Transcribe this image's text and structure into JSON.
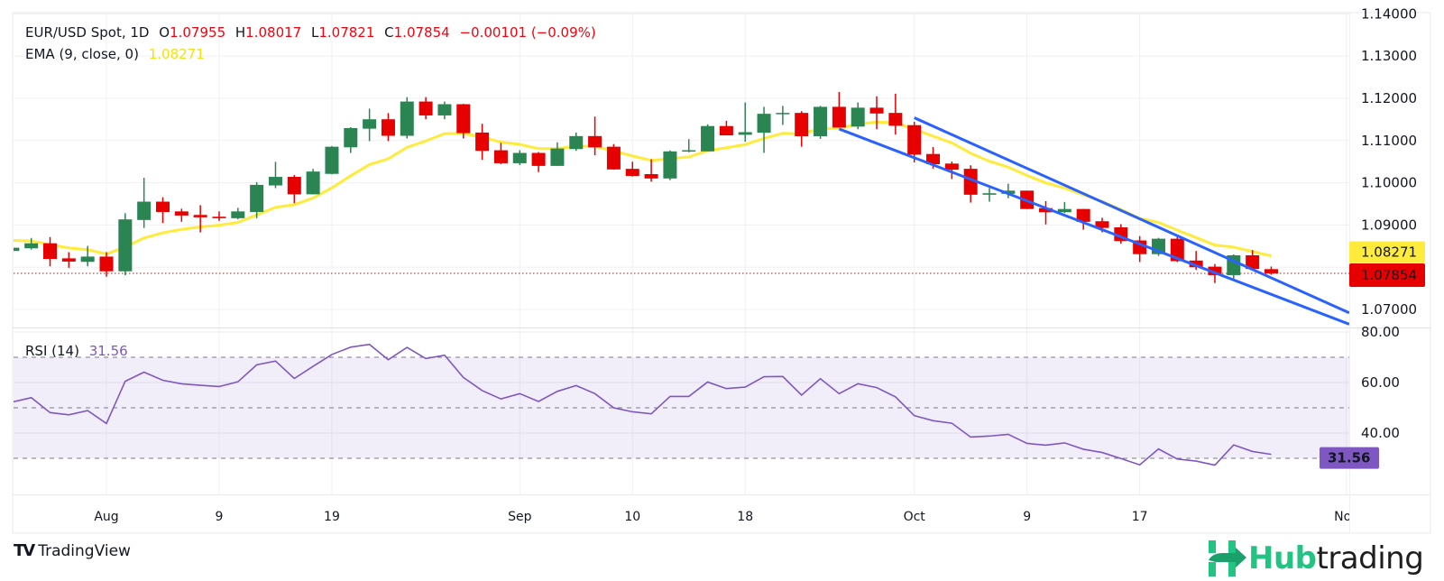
{
  "header": {
    "symbol": "EUR/USD Spot, 1D",
    "o_label": "O",
    "open": "1.07955",
    "h_label": "H",
    "high": "1.08017",
    "l_label": "L",
    "low": "1.07821",
    "c_label": "C",
    "close": "1.07854",
    "change": "−0.00101 (−0.09%)"
  },
  "ema": {
    "label": "EMA (9, close, 0)",
    "value": "1.08271"
  },
  "rsi": {
    "label": "RSI (14)",
    "value": "31.56"
  },
  "price_badges": {
    "ema": "1.08271",
    "last": "1.07854",
    "rsi": "31.56"
  },
  "colors": {
    "up": "#2b8553",
    "down": "#e60000",
    "ema": "#ffeb3b",
    "channel": "#2962ff",
    "rsi": "#7e57c2",
    "badge_ema": "#ffeb3b",
    "badge_last": "#e60000",
    "badge_rsi": "#7e57c2"
  },
  "footer": {
    "tradingview": "TradingView",
    "hub_a": "Hub",
    "hub_b": "trading"
  },
  "chart_data": {
    "type": "candlestick",
    "title": "EUR/USD Spot, 1D",
    "first_index": -5,
    "candles_ohlc": [
      [
        1.08385,
        1.08462,
        1.08385,
        1.08462
      ],
      [
        1.08448,
        1.08693,
        1.0842,
        1.08567
      ],
      [
        1.08567,
        1.08714,
        1.08022,
        1.08196
      ],
      [
        1.0821,
        1.08357,
        1.07987,
        1.08134
      ],
      [
        1.08127,
        1.08504,
        1.08022,
        1.08252
      ],
      [
        1.08252,
        1.08357,
        1.07777,
        1.07903
      ],
      [
        1.07903,
        1.0928,
        1.07812,
        1.09133
      ],
      [
        1.09119,
        1.10119,
        1.0893,
        1.09553
      ],
      [
        1.09553,
        1.09657,
        1.09049,
        1.09308
      ],
      [
        1.09322,
        1.09385,
        1.09077,
        1.09224
      ],
      [
        1.09238,
        1.09469,
        1.08826,
        1.09182
      ],
      [
        1.09196,
        1.09322,
        1.09098,
        1.09161
      ],
      [
        1.09161,
        1.09406,
        1.09133,
        1.09322
      ],
      [
        1.09308,
        1.10014,
        1.09161,
        1.09951
      ],
      [
        1.09937,
        1.10496,
        1.09874,
        1.1014
      ],
      [
        1.1014,
        1.10182,
        1.09518,
        1.09727
      ],
      [
        1.09727,
        1.10328,
        1.09727,
        1.10266
      ],
      [
        1.10211,
        1.1087,
        1.102,
        1.10854
      ],
      [
        1.1084,
        1.11316,
        1.10707,
        1.11295
      ],
      [
        1.11281,
        1.11756,
        1.10987,
        1.11504
      ],
      [
        1.11504,
        1.11651,
        1.10987,
        1.11113
      ],
      [
        1.11113,
        1.12029,
        1.1105,
        1.11924
      ],
      [
        1.11924,
        1.12029,
        1.11504,
        1.11595
      ],
      [
        1.11595,
        1.11924,
        1.11504,
        1.11861
      ],
      [
        1.11861,
        1.1187,
        1.1105,
        1.11176
      ],
      [
        1.1119,
        1.11399,
        1.10547,
        1.10756
      ],
      [
        1.1077,
        1.10945,
        1.10442,
        1.10463
      ],
      [
        1.10463,
        1.1077,
        1.10421,
        1.10707
      ],
      [
        1.10707,
        1.10728,
        1.10253,
        1.104
      ],
      [
        1.104,
        1.10959,
        1.104,
        1.10812
      ],
      [
        1.10798,
        1.1119,
        1.10756,
        1.11106
      ],
      [
        1.11106,
        1.11567,
        1.10651,
        1.1084
      ],
      [
        1.10854,
        1.10917,
        1.1031,
        1.10316
      ],
      [
        1.1033,
        1.10498,
        1.10148,
        1.10162
      ],
      [
        1.10205,
        1.10557,
        1.10026,
        1.10102
      ],
      [
        1.10102,
        1.10765,
        1.10061,
        1.10744
      ],
      [
        1.10744,
        1.11034,
        1.10723,
        1.10771
      ],
      [
        1.10744,
        1.11385,
        1.10744,
        1.11344
      ],
      [
        1.11344,
        1.11468,
        1.11123,
        1.11123
      ],
      [
        1.11137,
        1.11903,
        1.10971,
        1.11199
      ],
      [
        1.11185,
        1.11799,
        1.10709,
        1.11634
      ],
      [
        1.11634,
        1.1182,
        1.11372,
        1.11655
      ],
      [
        1.11655,
        1.11696,
        1.10854,
        1.11103
      ],
      [
        1.11103,
        1.1182,
        1.1104,
        1.11799
      ],
      [
        1.11799,
        1.12151,
        1.11309,
        1.11309
      ],
      [
        1.1133,
        1.11903,
        1.11268,
        1.11779
      ],
      [
        1.11779,
        1.12048,
        1.11268,
        1.11641
      ],
      [
        1.11655,
        1.1211,
        1.11144,
        1.11351
      ],
      [
        1.11365,
        1.11447,
        1.10482,
        1.10667
      ],
      [
        1.10682,
        1.10847,
        1.10337,
        1.1044
      ],
      [
        1.10455,
        1.10502,
        1.10088,
        1.1031
      ],
      [
        1.10331,
        1.10414,
        1.09531,
        1.09717
      ],
      [
        1.09717,
        1.09876,
        1.09552,
        1.09752
      ],
      [
        1.09738,
        1.09979,
        1.09634,
        1.09814
      ],
      [
        1.09814,
        1.09814,
        1.09379,
        1.09379
      ],
      [
        1.094,
        1.09565,
        1.09013,
        1.09303
      ],
      [
        1.09303,
        1.09545,
        1.09282,
        1.09379
      ],
      [
        1.09379,
        1.09379,
        1.08889,
        1.09075
      ],
      [
        1.09089,
        1.09172,
        1.08827,
        1.08931
      ],
      [
        1.08944,
        1.0902,
        1.08558,
        1.0862
      ],
      [
        1.08634,
        1.08737,
        1.08123,
        1.0831
      ],
      [
        1.0831,
        1.08696,
        1.08268,
        1.08675
      ],
      [
        1.08675,
        1.08717,
        1.08123,
        1.08144
      ],
      [
        1.08158,
        1.08385,
        1.07937,
        1.07999
      ],
      [
        1.08013,
        1.08075,
        1.07626,
        1.07813
      ],
      [
        1.07813,
        1.08303,
        1.0773,
        1.08282
      ],
      [
        1.08282,
        1.08406,
        1.07958,
        1.07958
      ],
      [
        1.07955,
        1.08017,
        1.07821,
        1.07854
      ]
    ],
    "ema_period": 9,
    "ema_seed": 1.0868,
    "last_close": 1.07854,
    "channel_lines": [
      {
        "name": "upper",
        "from": [
          43,
          1.1154
        ],
        "to": [
          66.15,
          1.0692
        ]
      },
      {
        "name": "lower",
        "from": [
          39,
          1.11275
        ],
        "to": [
          66.15,
          1.0665
        ]
      }
    ],
    "price_axis": {
      "ticks": [
        "1.14000",
        "1.13000",
        "1.12000",
        "1.11000",
        "1.10000",
        "1.09000",
        "1.07000"
      ],
      "tick_values": [
        1.14,
        1.13,
        1.12,
        1.11,
        1.1,
        1.09,
        1.07
      ],
      "grid_values": [
        1.14,
        1.13,
        1.12,
        1.11,
        1.1,
        1.09,
        1.08,
        1.07
      ]
    },
    "time_axis": {
      "labels": [
        "Aug",
        "9",
        "19",
        "Sep",
        "10",
        "18",
        "Oct",
        "9",
        "17",
        "Nov"
      ],
      "indices": [
        0,
        6,
        12,
        22,
        28,
        34,
        43,
        49,
        55,
        66
      ]
    },
    "rsi_series": [
      52.3,
      54.0,
      48.1,
      47.2,
      48.9,
      43.8,
      60.5,
      64.1,
      60.9,
      59.5,
      58.9,
      58.4,
      60.3,
      67.0,
      68.5,
      61.6,
      66.4,
      71.1,
      74.0,
      75.1,
      69.0,
      73.9,
      69.5,
      70.8,
      62.0,
      56.8,
      53.5,
      55.6,
      52.5,
      56.5,
      58.8,
      55.6,
      50.0,
      48.4,
      47.6,
      54.5,
      54.5,
      60.2,
      57.6,
      58.2,
      62.3,
      62.4,
      55.0,
      61.5,
      55.6,
      59.5,
      58.0,
      54.3,
      46.9,
      44.9,
      43.9,
      38.4,
      38.8,
      39.5,
      35.9,
      35.2,
      36.1,
      33.6,
      32.3,
      29.9,
      27.4,
      33.7,
      29.7,
      28.9,
      27.3,
      35.3,
      32.7,
      31.56
    ],
    "rsi_axis": {
      "ticks": [
        "80.00",
        "60.00",
        "40.00"
      ],
      "tick_values": [
        80,
        60,
        40
      ],
      "bands": [
        30,
        50,
        70
      ]
    }
  }
}
